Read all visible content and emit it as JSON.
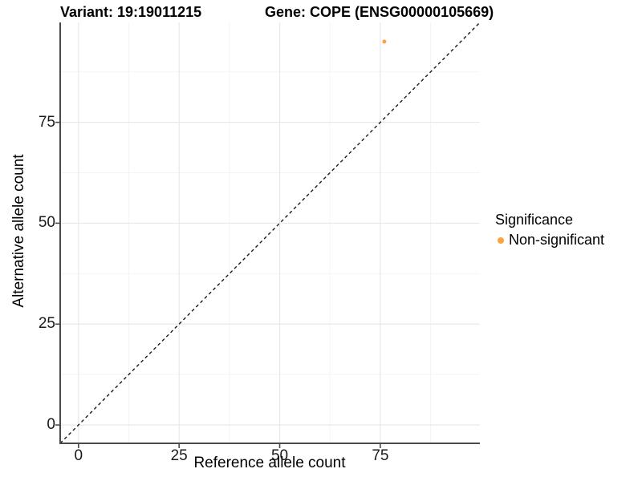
{
  "chart_data": {
    "type": "scatter",
    "titles": {
      "left": "Variant: 19:19011215",
      "right": "Gene: COPE (ENSG00000105669)"
    },
    "xlabel": "Reference allele count",
    "ylabel": "Alternative allele count",
    "x_ticks": [
      0,
      25,
      50,
      75
    ],
    "y_ticks": [
      0,
      25,
      50,
      75
    ],
    "minor_gridlines": [
      12.5,
      37.5,
      62.5,
      87.5
    ],
    "xlim": [
      -4.55,
      99.75
    ],
    "ylim": [
      -4.55,
      99.75
    ],
    "grid": "major+minor",
    "points": [
      {
        "x": 76,
        "y": 95,
        "series": "Non-significant"
      }
    ],
    "reference_line": {
      "equation": "y = x",
      "style": "dashed",
      "color": "#1a1a1a"
    },
    "legend": {
      "title": "Significance",
      "position": "right",
      "items": [
        {
          "label": "Non-significant",
          "color": "#FBA33C"
        }
      ]
    },
    "colors": {
      "point": "#FBA33C",
      "axis_line": "#4a4a4a",
      "grid_major": "#e8e8e8",
      "grid_minor": "#f4f4f4",
      "background": "#ffffff",
      "text": "#000000"
    }
  }
}
